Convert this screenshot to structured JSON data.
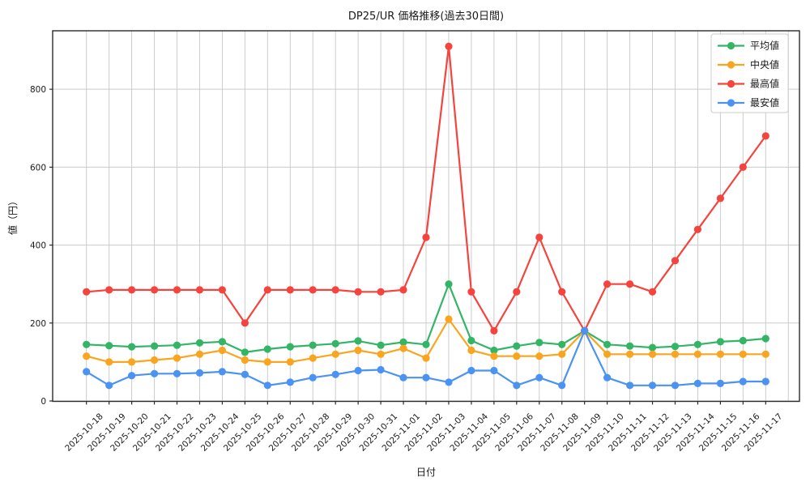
{
  "chart_data": {
    "type": "line",
    "title": "DP25/UR 価格推移(過去30日間)",
    "xlabel": "日付",
    "ylabel": "値（円）",
    "grid": true,
    "legend_position": "upper-right",
    "ylim": [
      -1,
      950
    ],
    "yticks": [
      0,
      200,
      400,
      600,
      800
    ],
    "x": [
      "2025-10-18",
      "2025-10-19",
      "2025-10-20",
      "2025-10-21",
      "2025-10-22",
      "2025-10-23",
      "2025-10-24",
      "2025-10-25",
      "2025-10-26",
      "2025-10-27",
      "2025-10-28",
      "2025-10-29",
      "2025-10-30",
      "2025-10-31",
      "2025-11-01",
      "2025-11-02",
      "2025-11-03",
      "2025-11-04",
      "2025-11-05",
      "2025-11-06",
      "2025-11-07",
      "2025-11-08",
      "2025-11-09",
      "2025-11-10",
      "2025-11-11",
      "2025-11-12",
      "2025-11-13",
      "2025-11-14",
      "2025-11-15",
      "2025-11-16",
      "2025-11-17"
    ],
    "series": [
      {
        "key": "mean",
        "name": "平均値",
        "color": "#33b565",
        "values": [
          145,
          142,
          139,
          141,
          143,
          149,
          152,
          125,
          133,
          139,
          143,
          147,
          154,
          143,
          151,
          145,
          300,
          155,
          130,
          141,
          150,
          145,
          180,
          145,
          141,
          137,
          140,
          145,
          152,
          155,
          160
        ]
      },
      {
        "key": "median",
        "name": "中央値",
        "color": "#f9a51f",
        "values": [
          115,
          100,
          100,
          105,
          110,
          120,
          130,
          105,
          100,
          100,
          110,
          120,
          130,
          120,
          135,
          110,
          210,
          130,
          115,
          115,
          115,
          120,
          180,
          120,
          120,
          120,
          120,
          120,
          120,
          120,
          120
        ]
      },
      {
        "key": "max",
        "name": "最高値",
        "color": "#f4443d",
        "values": [
          280,
          285,
          285,
          285,
          285,
          285,
          285,
          200,
          285,
          285,
          285,
          285,
          280,
          280,
          285,
          420,
          910,
          280,
          180,
          280,
          420,
          280,
          180,
          300,
          300,
          280,
          360,
          440,
          520,
          600,
          680
        ]
      },
      {
        "key": "min",
        "name": "最安値",
        "color": "#4b93f2",
        "values": [
          75,
          40,
          65,
          70,
          70,
          72,
          75,
          68,
          40,
          48,
          60,
          68,
          78,
          80,
          60,
          60,
          48,
          78,
          78,
          40,
          60,
          40,
          180,
          60,
          40,
          40,
          40,
          45,
          45,
          50,
          50
        ]
      }
    ],
    "colors": {
      "grid": "#cccccc",
      "frame": "#2b2b2b",
      "legend_border": "#cccccc",
      "legend_bg": "#ffffff"
    }
  }
}
